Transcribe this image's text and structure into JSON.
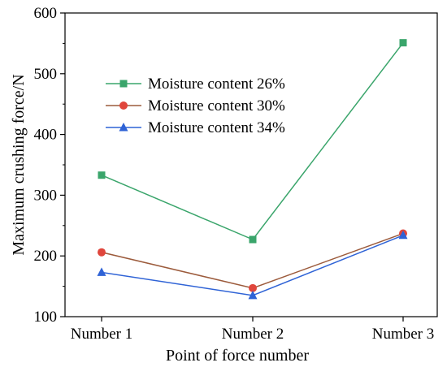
{
  "chart_data": {
    "type": "line",
    "title": "",
    "xlabel": "Point of force number",
    "ylabel": "Maximum crushing force/N",
    "categories": [
      "Number 1",
      "Number 2",
      "Number 3"
    ],
    "ylim": [
      100,
      600
    ],
    "yticks": [
      100,
      200,
      300,
      400,
      500,
      600
    ],
    "grid": false,
    "legend_position": "top-left",
    "series": [
      {
        "name": "Moisture content 26%",
        "values": [
          333,
          227,
          551
        ],
        "color": "#3aa56b",
        "marker": "square"
      },
      {
        "name": "Moisture content 30%",
        "values": [
          206,
          147,
          237
        ],
        "color": "#e0463c",
        "line_color": "#9c5b3c",
        "marker": "circle"
      },
      {
        "name": "Moisture content  34%",
        "values": [
          173,
          135,
          234
        ],
        "color": "#2f63d6",
        "marker": "triangle"
      }
    ]
  }
}
